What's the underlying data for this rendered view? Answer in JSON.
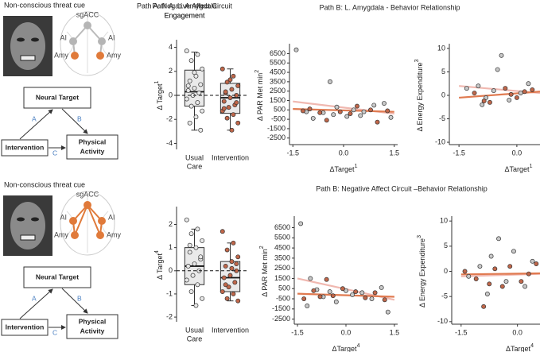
{
  "cue_labels": [
    "Non-conscious threat cue",
    "Non-conscious threat cue"
  ],
  "diagrams": [
    {
      "nodes": [
        "sgACC",
        "AI",
        "AI",
        "Amy",
        "Amy"
      ],
      "neural_target": "Neural Target",
      "intervention": "Intervention",
      "outcome": [
        "Physical",
        "Activity"
      ],
      "paths": [
        "A",
        "B",
        "C"
      ]
    },
    {
      "nodes": [
        "sgACC",
        "AI",
        "AI",
        "Amy",
        "Amy"
      ],
      "neural_target": "Neural Target",
      "intervention": "Intervention",
      "outcome": [
        "Physical",
        "Activity"
      ],
      "paths": [
        "A",
        "B",
        "C"
      ]
    }
  ],
  "row_titles": [
    "Path B: L. Amygdala - Behavior Relationship",
    "Path B: Negative Affect Circuit –Behavior Relationship"
  ],
  "chart_data": [
    {
      "type": "box",
      "title": [
        "Path A: L. Amygdala",
        "Engagement"
      ],
      "ylabel": "Δ Target",
      "ylabel_sup": "1",
      "categories": [
        [
          "Usual",
          "Care"
        ],
        [
          "Intervention"
        ]
      ],
      "ylim": [
        -4.3,
        4.3
      ],
      "yticks": [
        -4,
        -2,
        0,
        2,
        4
      ],
      "hline": 0,
      "box_color": "#dcdcdc",
      "boxes": [
        {
          "whislo": -2.9,
          "q1": -0.9,
          "med": 0.3,
          "q3": 2.1,
          "whishi": 3.6,
          "color": "#e8e8e8",
          "points": [
            3.7,
            3.4,
            2.9,
            2.2,
            1.6,
            1.2,
            0.9,
            0.6,
            0.4,
            0.2,
            0.0,
            -0.3,
            -0.6,
            -0.9,
            -1.3,
            -1.8,
            -2.3,
            -2.9,
            1.9,
            0.8
          ]
        },
        {
          "whislo": -2.9,
          "q1": -1.5,
          "med": -0.2,
          "q3": 1.0,
          "whishi": 2.2,
          "color": "#c0674a",
          "points": [
            2.2,
            1.6,
            1.1,
            0.8,
            0.5,
            0.2,
            0.0,
            -0.2,
            -0.5,
            -0.8,
            -1.0,
            -1.3,
            -1.6,
            -1.9,
            -2.3,
            -2.9,
            0.3,
            -0.6,
            1.3,
            -1.1
          ]
        }
      ]
    },
    {
      "type": "scatter",
      "xlabel": "ΔTarget",
      "xlabel_sup": "1",
      "ylabel": "Δ PAR Met min",
      "ylabel_sup": "2",
      "xlim": [
        -1.6,
        1.6
      ],
      "xticks": [
        -1.5,
        {
          "value": 0,
          "label": "0.0"
        },
        1.5
      ],
      "ylim": [
        -3200,
        7300
      ],
      "yticks": [
        -2500,
        -1500,
        -500,
        500,
        1500,
        2500,
        3500,
        4500,
        5500,
        6500
      ],
      "series": [
        {
          "color": "#c8c8c8",
          "x": [
            -1.4,
            -1.1,
            -0.9,
            -0.6,
            -0.4,
            -0.2,
            0.1,
            0.3,
            0.6,
            0.9,
            1.2,
            1.4,
            -0.3,
            0.5
          ],
          "values": [
            6900,
            300,
            -400,
            200,
            3500,
            800,
            -200,
            500,
            300,
            1000,
            1200,
            -300,
            0,
            -100
          ]
        },
        {
          "color": "#c0674a",
          "x": [
            -1.2,
            -1.0,
            -0.7,
            -0.5,
            -0.1,
            0.2,
            0.4,
            0.8,
            1.0,
            1.3
          ],
          "values": [
            400,
            600,
            200,
            -600,
            300,
            100,
            900,
            500,
            -800,
            400
          ]
        }
      ],
      "fits": [
        {
          "color": "#f0b8b0",
          "x": [
            -1.5,
            1.5
          ],
          "values": [
            1400,
            100
          ]
        },
        {
          "color": "#e07a50",
          "x": [
            -1.5,
            1.5
          ],
          "values": [
            600,
            300
          ]
        }
      ]
    },
    {
      "type": "scatter",
      "xlabel": "ΔTarget",
      "xlabel_sup": "1",
      "ylabel": "Δ Energy Expenditure",
      "ylabel_sup": "3",
      "xlim": [
        -1.75,
        0.6
      ],
      "xticks": [
        -1.5,
        {
          "value": 0,
          "label": "0.0"
        }
      ],
      "ylim": [
        -10.5,
        10.5
      ],
      "yticks": [
        -10,
        -5,
        0,
        5,
        10
      ],
      "series": [
        {
          "color": "#c8c8c8",
          "x": [
            -1.3,
            -1.0,
            -0.8,
            -0.6,
            -0.4,
            -0.2,
            0.1,
            0.3,
            -0.5,
            -0.9
          ],
          "values": [
            1.5,
            2.0,
            -0.5,
            1.0,
            8.5,
            -1.0,
            0.5,
            2.5,
            5.5,
            -2.0
          ]
        },
        {
          "color": "#c0674a",
          "x": [
            -1.1,
            -0.7,
            -0.3,
            0,
            0.2,
            0.4,
            -0.85,
            -0.15
          ],
          "values": [
            0.5,
            -1.5,
            1.5,
            -0.5,
            0.8,
            1.2,
            -1.2,
            0.2
          ]
        }
      ],
      "fits": [
        {
          "color": "#f0b8b0",
          "x": [
            -1.5,
            0.6
          ],
          "values": [
            2.0,
            0.5
          ]
        },
        {
          "color": "#e07a50",
          "x": [
            -1.5,
            0.6
          ],
          "values": [
            -0.5,
            0.8
          ]
        }
      ]
    },
    {
      "type": "box",
      "title": [
        "Path A: Negative Affect Circuit",
        "Engagement"
      ],
      "ylabel": "Δ Target",
      "ylabel_sup": "4",
      "categories": [
        [
          "Usual",
          "Care"
        ],
        [
          "Intervention"
        ]
      ],
      "ylim": [
        -2.1,
        2.6
      ],
      "yticks": [
        -2,
        -1,
        0,
        1,
        2
      ],
      "hline": 0,
      "box_color": "#dcdcdc",
      "boxes": [
        {
          "whislo": -1.5,
          "q1": -0.6,
          "med": 0.2,
          "q3": 1.0,
          "whishi": 1.8,
          "color": "#e8e8e8",
          "points": [
            2.2,
            1.8,
            1.6,
            1.3,
            1.0,
            0.8,
            0.5,
            0.3,
            0.2,
            0.0,
            -0.2,
            -0.4,
            -0.6,
            -0.9,
            -1.2,
            -1.5,
            1.1,
            0.6
          ]
        },
        {
          "whislo": -1.3,
          "q1": -0.9,
          "med": -0.3,
          "q3": 0.4,
          "whishi": 1.2,
          "color": "#c0674a",
          "points": [
            1.7,
            1.2,
            0.9,
            0.6,
            0.4,
            0.2,
            0.0,
            -0.2,
            -0.3,
            -0.5,
            -0.7,
            -0.9,
            -1.0,
            -1.2,
            -1.3,
            0.1,
            -0.6,
            0.3
          ]
        }
      ]
    },
    {
      "type": "scatter",
      "xlabel": "ΔTarget",
      "xlabel_sup": "4",
      "ylabel": "Δ PAR Met min",
      "ylabel_sup": "2",
      "xlim": [
        -1.6,
        1.6
      ],
      "xticks": [
        -1.5,
        {
          "value": 0,
          "label": "0.0"
        },
        1.5
      ],
      "ylim": [
        -3000,
        7400
      ],
      "yticks": [
        -2500,
        -1500,
        -500,
        500,
        1500,
        2500,
        3500,
        4500,
        5500,
        6500
      ],
      "series": [
        {
          "color": "#c8c8c8",
          "x": [
            -1.4,
            -1.2,
            -0.9,
            -0.7,
            -0.5,
            -0.3,
            0,
            0.2,
            0.5,
            0.8,
            1.1,
            1.3,
            -1.1
          ],
          "values": [
            6900,
            -1200,
            400,
            -300,
            200,
            -800,
            300,
            -100,
            100,
            -500,
            600,
            -1800,
            1500
          ]
        },
        {
          "color": "#c0674a",
          "x": [
            -1.3,
            -1.0,
            -0.8,
            -0.6,
            -0.4,
            -0.1,
            0.3,
            0.6,
            0.9,
            1.2
          ],
          "values": [
            -500,
            300,
            -300,
            1400,
            -200,
            500,
            200,
            -400,
            100,
            -600
          ]
        }
      ],
      "fits": [
        {
          "color": "#f0b8b0",
          "x": [
            -1.5,
            1.5
          ],
          "values": [
            1500,
            -600
          ]
        },
        {
          "color": "#e07a50",
          "x": [
            -1.5,
            1.5
          ],
          "values": [
            0,
            -300
          ]
        }
      ]
    },
    {
      "type": "scatter",
      "xlabel": "ΔTarget",
      "xlabel_sup": "4",
      "ylabel": "Δ Energy Expenditure",
      "ylabel_sup": "3",
      "xlim": [
        -1.75,
        0.6
      ],
      "xticks": [
        -1.5,
        {
          "value": 0,
          "label": "0.0"
        }
      ],
      "ylim": [
        -10.5,
        10.5
      ],
      "yticks": [
        -10,
        -5,
        0,
        5,
        10
      ],
      "series": [
        {
          "color": "#c8c8c8",
          "x": [
            -1.3,
            -1.0,
            -0.7,
            -0.5,
            -0.3,
            -0.1,
            0.2,
            0.4,
            -0.8
          ],
          "values": [
            -1,
            1,
            3,
            6.5,
            -2,
            4,
            -3,
            2,
            -4.5
          ]
        },
        {
          "color": "#c0674a",
          "x": [
            -1.4,
            -1.1,
            -0.9,
            -0.6,
            -0.4,
            -0.2,
            0.1,
            0.3,
            0.5,
            -0.75
          ],
          "values": [
            0,
            -1.5,
            -7,
            0.5,
            -3,
            1,
            -2,
            -0.5,
            1.5,
            -2.5
          ]
        }
      ],
      "fits": [
        {
          "color": "#f0b8b0",
          "x": [
            -1.5,
            0.6
          ],
          "values": [
            -1,
            -0.5
          ]
        },
        {
          "color": "#e07a50",
          "x": [
            -1.5,
            0.6
          ],
          "values": [
            -0.6,
            -0.4
          ]
        }
      ]
    }
  ]
}
